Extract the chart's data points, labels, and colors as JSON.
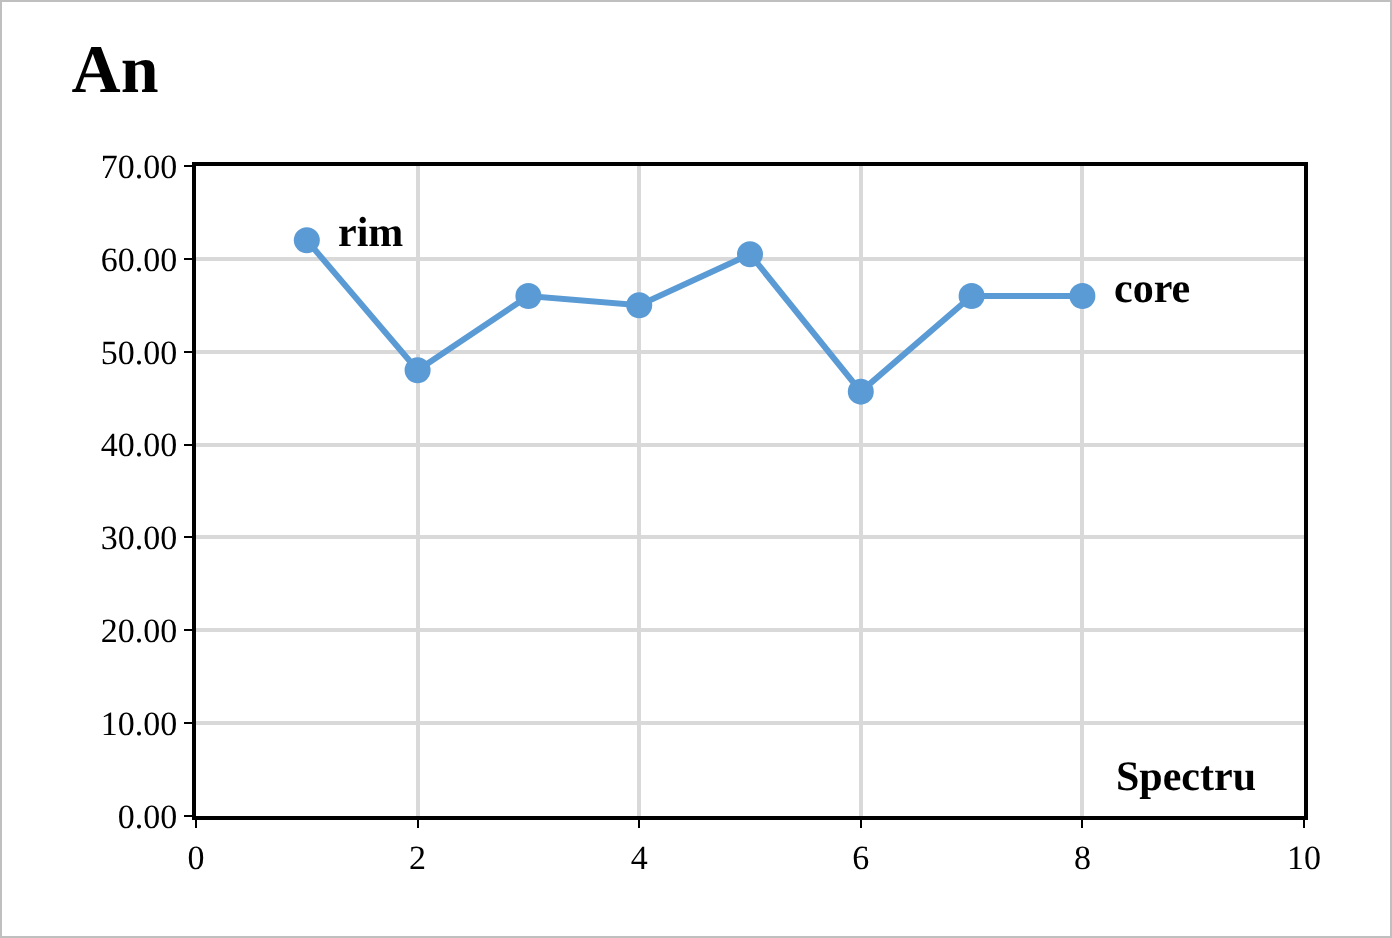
{
  "chart_data": {
    "type": "line",
    "title": "An",
    "xlabel": "Spectru",
    "x": [
      1,
      2,
      3,
      4,
      5,
      6,
      7,
      8
    ],
    "series": [
      {
        "color": "#5b9bd5",
        "values": [
          62,
          48,
          56,
          55,
          60.5,
          45.7,
          56,
          56
        ]
      }
    ],
    "xlim": [
      0,
      10
    ],
    "xticks": [
      0,
      2,
      4,
      6,
      8,
      10
    ],
    "ylim": [
      0,
      70
    ],
    "yticks": [
      {
        "value": 0,
        "label": "0.00"
      },
      {
        "value": 10,
        "label": "10.00"
      },
      {
        "value": 20,
        "label": "20.00"
      },
      {
        "value": 30,
        "label": "30.00"
      },
      {
        "value": 40,
        "label": "40.00"
      },
      {
        "value": 50,
        "label": "50.00"
      },
      {
        "value": 60,
        "label": "60.00"
      },
      {
        "value": 70,
        "label": "70.00"
      }
    ],
    "grid": true,
    "marker": "circle",
    "line_style": "solid",
    "legend": false,
    "annotations": [
      {
        "text": "rim",
        "x": 1,
        "y": 62
      },
      {
        "text": "core",
        "x": 8,
        "y": 56
      }
    ]
  }
}
